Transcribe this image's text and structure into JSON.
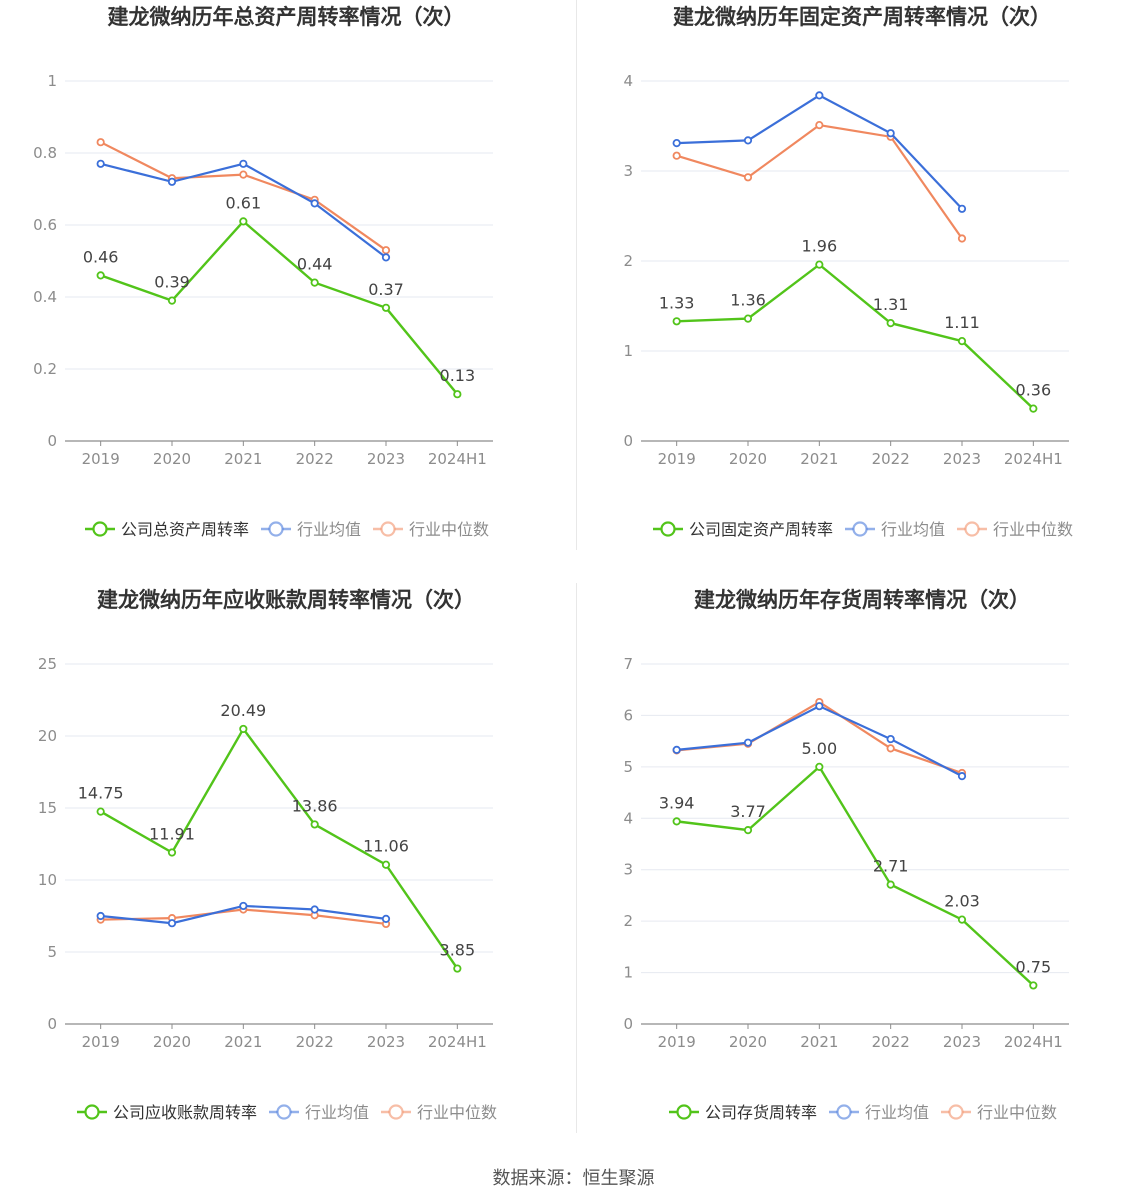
{
  "colors": {
    "company": "#52c41a",
    "avg": "#3b6fd9",
    "median": "#f0885f",
    "grid": "#e6e9f0",
    "axis": "#8c8c8c",
    "text": "#333333",
    "label": "#444444"
  },
  "legend": {
    "avg_label": "行业均值",
    "median_label": "行业中位数"
  },
  "source_text": "数据来源：恒生聚源",
  "chart_data": [
    {
      "type": "line",
      "title": "建龙微纳历年总资产周转率情况（次）",
      "categories": [
        "2019",
        "2020",
        "2021",
        "2022",
        "2023",
        "2024H1"
      ],
      "yticks": [
        "0",
        "0.2",
        "0.4",
        "0.6",
        "0.8",
        "1"
      ],
      "ylim": [
        0,
        1
      ],
      "company_label": "公司总资产周转率",
      "series": [
        {
          "key": "company",
          "name": "公司总资产周转率",
          "values": [
            0.46,
            0.39,
            0.61,
            0.44,
            0.37,
            0.13
          ],
          "labels": [
            "0.46",
            "0.39",
            "0.61",
            "0.44",
            "0.37",
            "0.13"
          ]
        },
        {
          "key": "avg",
          "name": "行业均值",
          "values": [
            0.77,
            0.72,
            0.77,
            0.66,
            0.51,
            null
          ]
        },
        {
          "key": "median",
          "name": "行业中位数",
          "values": [
            0.83,
            0.73,
            0.74,
            0.67,
            0.53,
            null
          ]
        }
      ]
    },
    {
      "type": "line",
      "title": "建龙微纳历年固定资产周转率情况（次）",
      "categories": [
        "2019",
        "2020",
        "2021",
        "2022",
        "2023",
        "2024H1"
      ],
      "yticks": [
        "0",
        "1",
        "2",
        "3",
        "4"
      ],
      "ylim": [
        0,
        4
      ],
      "company_label": "公司固定资产周转率",
      "series": [
        {
          "key": "company",
          "name": "公司固定资产周转率",
          "values": [
            1.33,
            1.36,
            1.96,
            1.31,
            1.11,
            0.36
          ],
          "labels": [
            "1.33",
            "1.36",
            "1.96",
            "1.31",
            "1.11",
            "0.36"
          ]
        },
        {
          "key": "avg",
          "name": "行业均值",
          "values": [
            3.31,
            3.34,
            3.84,
            3.42,
            2.58,
            null
          ]
        },
        {
          "key": "median",
          "name": "行业中位数",
          "values": [
            3.17,
            2.93,
            3.51,
            3.38,
            2.25,
            null
          ]
        }
      ]
    },
    {
      "type": "line",
      "title": "建龙微纳历年应收账款周转率情况（次）",
      "categories": [
        "2019",
        "2020",
        "2021",
        "2022",
        "2023",
        "2024H1"
      ],
      "yticks": [
        "0",
        "5",
        "10",
        "15",
        "20",
        "25"
      ],
      "ylim": [
        0,
        25
      ],
      "company_label": "公司应收账款周转率",
      "series": [
        {
          "key": "company",
          "name": "公司应收账款周转率",
          "values": [
            14.75,
            11.91,
            20.49,
            13.86,
            11.06,
            3.85
          ],
          "labels": [
            "14.75",
            "11.91",
            "20.49",
            "13.86",
            "11.06",
            "3.85"
          ]
        },
        {
          "key": "avg",
          "name": "行业均值",
          "values": [
            7.5,
            7.0,
            8.2,
            7.95,
            7.3,
            null
          ]
        },
        {
          "key": "median",
          "name": "行业中位数",
          "values": [
            7.25,
            7.35,
            7.95,
            7.55,
            6.95,
            null
          ]
        }
      ]
    },
    {
      "type": "line",
      "title": "建龙微纳历年存货周转率情况（次）",
      "categories": [
        "2019",
        "2020",
        "2021",
        "2022",
        "2023",
        "2024H1"
      ],
      "yticks": [
        "0",
        "1",
        "2",
        "3",
        "4",
        "5",
        "6",
        "7"
      ],
      "ylim": [
        0,
        7
      ],
      "company_label": "公司存货周转率",
      "series": [
        {
          "key": "company",
          "name": "公司存货周转率",
          "values": [
            3.94,
            3.77,
            5.0,
            2.71,
            2.03,
            0.75
          ],
          "labels": [
            "3.94",
            "3.77",
            "5.00",
            "2.71",
            "2.03",
            "0.75"
          ]
        },
        {
          "key": "avg",
          "name": "行业均值",
          "values": [
            5.33,
            5.47,
            6.18,
            5.54,
            4.82,
            null
          ]
        },
        {
          "key": "median",
          "name": "行业中位数",
          "values": [
            5.32,
            5.45,
            6.26,
            5.36,
            4.88,
            null
          ]
        }
      ]
    }
  ]
}
